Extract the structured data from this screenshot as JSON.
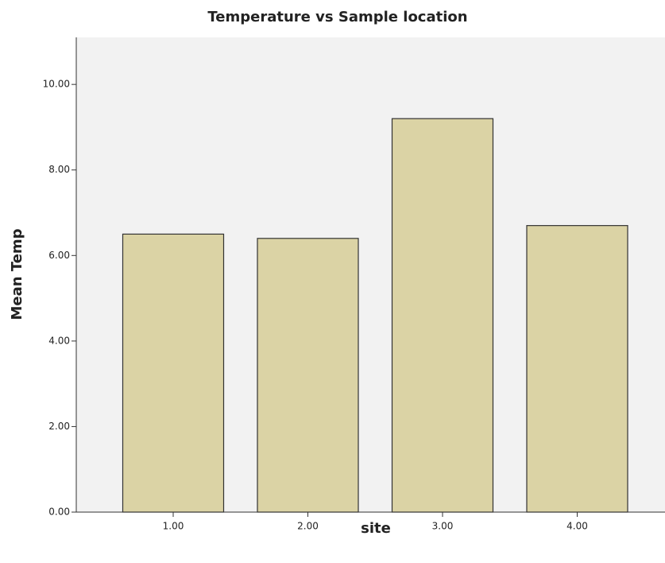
{
  "chart_data": {
    "type": "bar",
    "title": "Temperature vs Sample location",
    "x_label": "site",
    "y_label": "Mean Temp",
    "categories": [
      "1.00",
      "2.00",
      "3.00",
      "4.00"
    ],
    "values": [
      6.5,
      6.4,
      9.2,
      6.7
    ],
    "color": "#dbd3a5",
    "ylim": [
      0,
      11.1
    ],
    "yticks": [
      {
        "value": 0,
        "label": "0.00"
      },
      {
        "value": 2,
        "label": "2.00"
      },
      {
        "value": 4,
        "label": "4.00"
      },
      {
        "value": 6,
        "label": "6.00"
      },
      {
        "value": 8,
        "label": "8.00"
      },
      {
        "value": 10,
        "label": "10.00"
      }
    ]
  }
}
